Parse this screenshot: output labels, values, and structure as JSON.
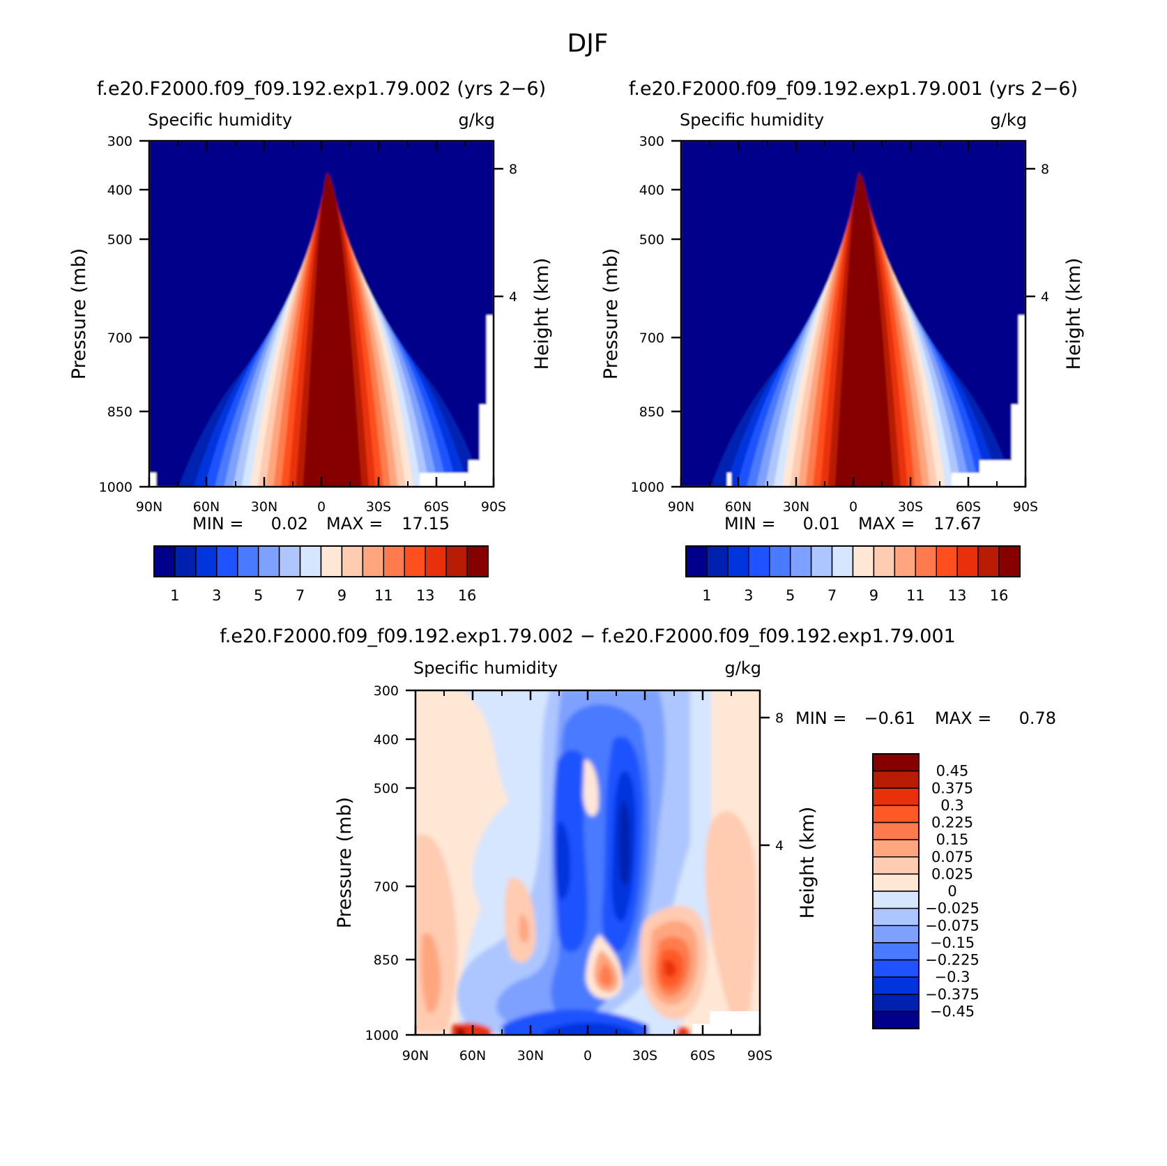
{
  "figure": {
    "title": "DJF"
  },
  "chart_data": [
    {
      "type": "contour",
      "title": "f.e20.F2000.f09_f09.192.exp1.79.002 (yrs 2−6)",
      "left_string": "Specific humidity",
      "right_string": "g/kg",
      "xlabel": "",
      "ylabel": "Pressure (mb)",
      "y2label": "Height (km)",
      "x_ticks": [
        "90N",
        "60N",
        "30N",
        "0",
        "30S",
        "60S",
        "90S"
      ],
      "y_ticks": [
        "300",
        "400",
        "500",
        "700",
        "850",
        "1000"
      ],
      "y2_ticks": [
        "8",
        "4"
      ],
      "xlim": [
        90,
        -90
      ],
      "ylim": [
        1000,
        300
      ],
      "min_label": "MIN =",
      "min_value": "0.02",
      "max_label": "MAX =",
      "max_value": "17.15",
      "peak": {
        "lat": -3,
        "pressure": 975,
        "value": 17.15
      },
      "colorbar_labels": [
        "1",
        "3",
        "5",
        "7",
        "9",
        "11",
        "13",
        "16"
      ],
      "colorbar_colors": [
        "#00008a",
        "#0021b0",
        "#0035de",
        "#1f53ff",
        "#4a7aff",
        "#7ea0ff",
        "#adc6ff",
        "#d6e6ff",
        "#ffe7d6",
        "#ffcbb1",
        "#ffa67f",
        "#ff7b4d",
        "#ff4f1f",
        "#e8300b",
        "#b81c04",
        "#870000"
      ]
    },
    {
      "type": "contour",
      "title": "f.e20.F2000.f09_f09.192.exp1.79.001 (yrs 2−6)",
      "left_string": "Specific humidity",
      "right_string": "g/kg",
      "xlabel": "",
      "ylabel": "Pressure (mb)",
      "y2label": "Height (km)",
      "x_ticks": [
        "90N",
        "60N",
        "30N",
        "0",
        "30S",
        "60S",
        "90S"
      ],
      "y_ticks": [
        "300",
        "400",
        "500",
        "700",
        "850",
        "1000"
      ],
      "y2_ticks": [
        "8",
        "4"
      ],
      "xlim": [
        90,
        -90
      ],
      "ylim": [
        1000,
        300
      ],
      "min_label": "MIN =",
      "min_value": "0.01",
      "max_label": "MAX =",
      "max_value": "17.67",
      "peak": {
        "lat": -3,
        "pressure": 975,
        "value": 17.67
      },
      "colorbar_labels": [
        "1",
        "3",
        "5",
        "7",
        "9",
        "11",
        "13",
        "16"
      ],
      "colorbar_colors": [
        "#00008a",
        "#0021b0",
        "#0035de",
        "#1f53ff",
        "#4a7aff",
        "#7ea0ff",
        "#adc6ff",
        "#d6e6ff",
        "#ffe7d6",
        "#ffcbb1",
        "#ffa67f",
        "#ff7b4d",
        "#ff4f1f",
        "#e8300b",
        "#b81c04",
        "#870000"
      ]
    },
    {
      "type": "contour",
      "title": "f.e20.F2000.f09_f09.192.exp1.79.002 − f.e20.F2000.f09_f09.192.exp1.79.001",
      "left_string": "Specific humidity",
      "right_string": "g/kg",
      "xlabel": "",
      "ylabel": "Pressure (mb)",
      "y2label": "Height (km)",
      "x_ticks": [
        "90N",
        "60N",
        "30N",
        "0",
        "30S",
        "60S",
        "90S"
      ],
      "y_ticks": [
        "300",
        "400",
        "500",
        "700",
        "850",
        "1000"
      ],
      "y2_ticks": [
        "8",
        "4"
      ],
      "xlim": [
        90,
        -90
      ],
      "ylim": [
        1000,
        300
      ],
      "min_label": "MIN =",
      "min_value": "−0.61",
      "max_label": "MAX =",
      "max_value": "0.78",
      "colorbar_labels": [
        "0.45",
        "0.375",
        "0.3",
        "0.225",
        "0.15",
        "0.075",
        "0.025",
        "0",
        "−0.025",
        "−0.075",
        "−0.15",
        "−0.225",
        "−0.3",
        "−0.375",
        "−0.45"
      ],
      "colorbar_colors": [
        "#870000",
        "#b81c04",
        "#e8300b",
        "#ff5a26",
        "#ff7b4d",
        "#ffa67f",
        "#ffcbb1",
        "#ffe7d6",
        "#d6e6ff",
        "#adc6ff",
        "#7ea0ff",
        "#4a7aff",
        "#1f53ff",
        "#0035de",
        "#0021b0",
        "#00008a"
      ]
    }
  ]
}
